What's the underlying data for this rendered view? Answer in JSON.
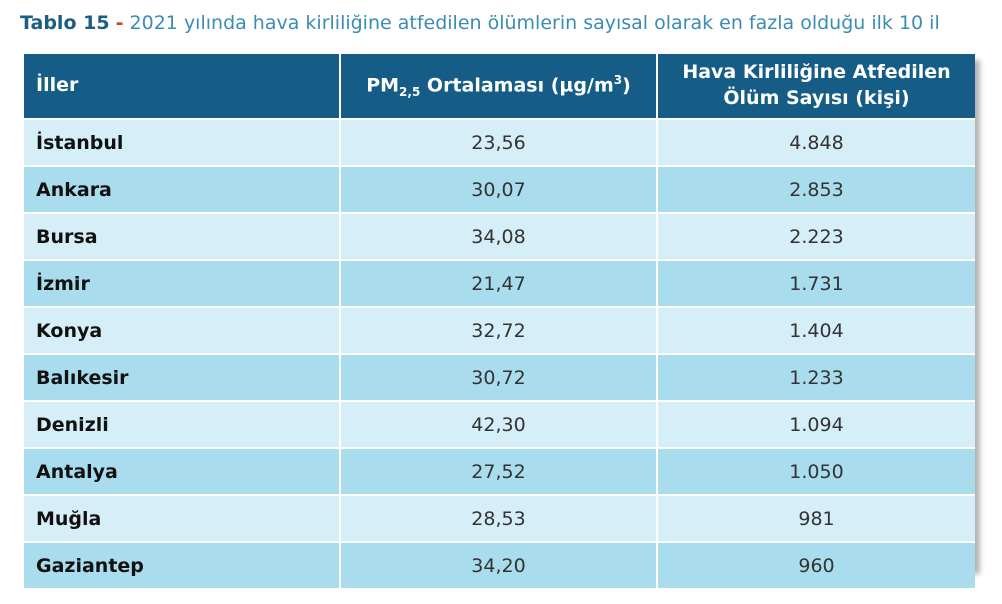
{
  "caption": {
    "label": "Tablo 15",
    "separator": "-",
    "text": "2021 yılında hava kirliliğine atfedilen ölümlerin sayısal olarak en fazla olduğu ilk 10 il"
  },
  "headers": {
    "city": "İller",
    "pm_prefix": "PM",
    "pm_sub": "2,5",
    "pm_middle": " Ortalaması (µg/m",
    "pm_sup": "3",
    "pm_suffix": ")",
    "deaths_line1": "Hava Kirliliğine Atfedilen",
    "deaths_line2": "Ölüm Sayısı (kişi)"
  },
  "rows": [
    {
      "city": "İstanbul",
      "pm": "23,56",
      "deaths": "4.848"
    },
    {
      "city": "Ankara",
      "pm": "30,07",
      "deaths": "2.853"
    },
    {
      "city": "Bursa",
      "pm": "34,08",
      "deaths": "2.223"
    },
    {
      "city": "İzmir",
      "pm": "21,47",
      "deaths": "1.731"
    },
    {
      "city": "Konya",
      "pm": "32,72",
      "deaths": "1.404"
    },
    {
      "city": "Balıkesir",
      "pm": "30,72",
      "deaths": "1.233"
    },
    {
      "city": "Denizli",
      "pm": "42,30",
      "deaths": "1.094"
    },
    {
      "city": "Antalya",
      "pm": "27,52",
      "deaths": "1.050"
    },
    {
      "city": "Muğla",
      "pm": "28,53",
      "deaths": "981"
    },
    {
      "city": "Gaziantep",
      "pm": "34,20",
      "deaths": "960"
    }
  ],
  "colors": {
    "header_bg": "#155d87",
    "row_light": "#d5eef7",
    "row_dark": "#a9dced",
    "caption_accent": "#d2452b"
  }
}
